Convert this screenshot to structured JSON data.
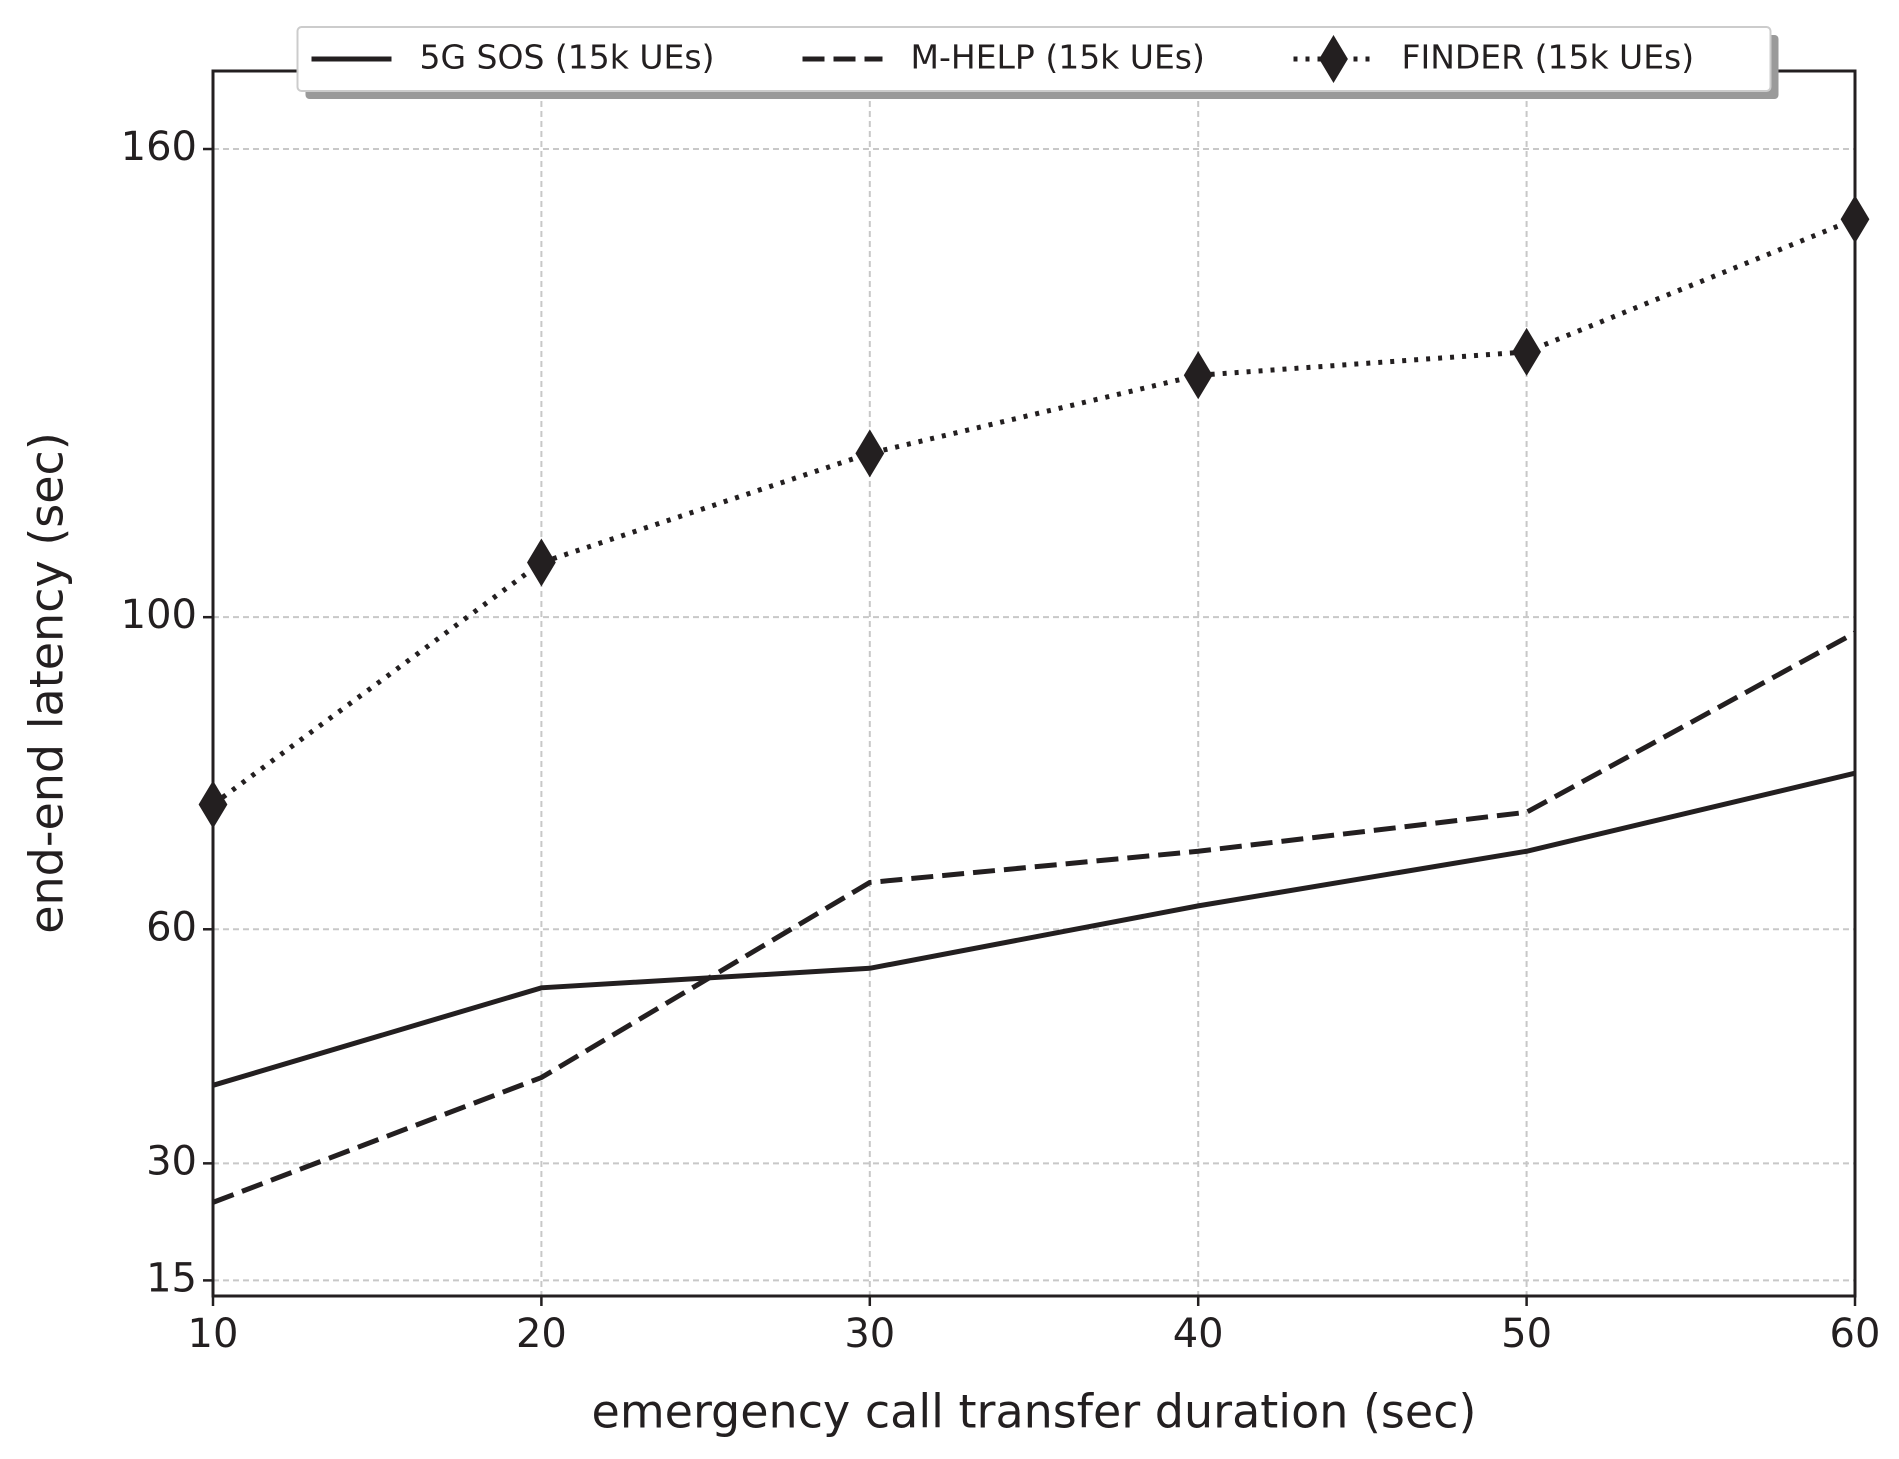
{
  "chart_data": {
    "type": "line",
    "x_label": "emergency call transfer duration (sec)",
    "y_label": "end-end latency (sec)",
    "x": [
      10,
      20,
      30,
      40,
      50,
      60
    ],
    "series": [
      {
        "name": "5G SOS (15k UEs)",
        "color": "#231f20",
        "linestyle": "solid",
        "values": [
          40,
          52.5,
          55,
          63,
          70,
          80
        ]
      },
      {
        "name": "M-HELP (15k UEs)",
        "color": "#231f20",
        "linestyle": "dashed",
        "values": [
          25,
          41,
          66,
          70,
          75,
          98
        ]
      },
      {
        "name": "FINDER (15k UEs)",
        "color": "#231f20",
        "linestyle": "dotted",
        "marker": "diamond",
        "values": [
          76,
          107,
          121,
          131,
          134,
          151
        ]
      }
    ],
    "xlim": [
      10,
      60
    ],
    "xticks": [
      10,
      20,
      30,
      40,
      50,
      60
    ],
    "ylim": [
      13,
      170
    ],
    "yticks": [
      15,
      30,
      60,
      100,
      160
    ],
    "grid": true,
    "legend": "upper center"
  }
}
